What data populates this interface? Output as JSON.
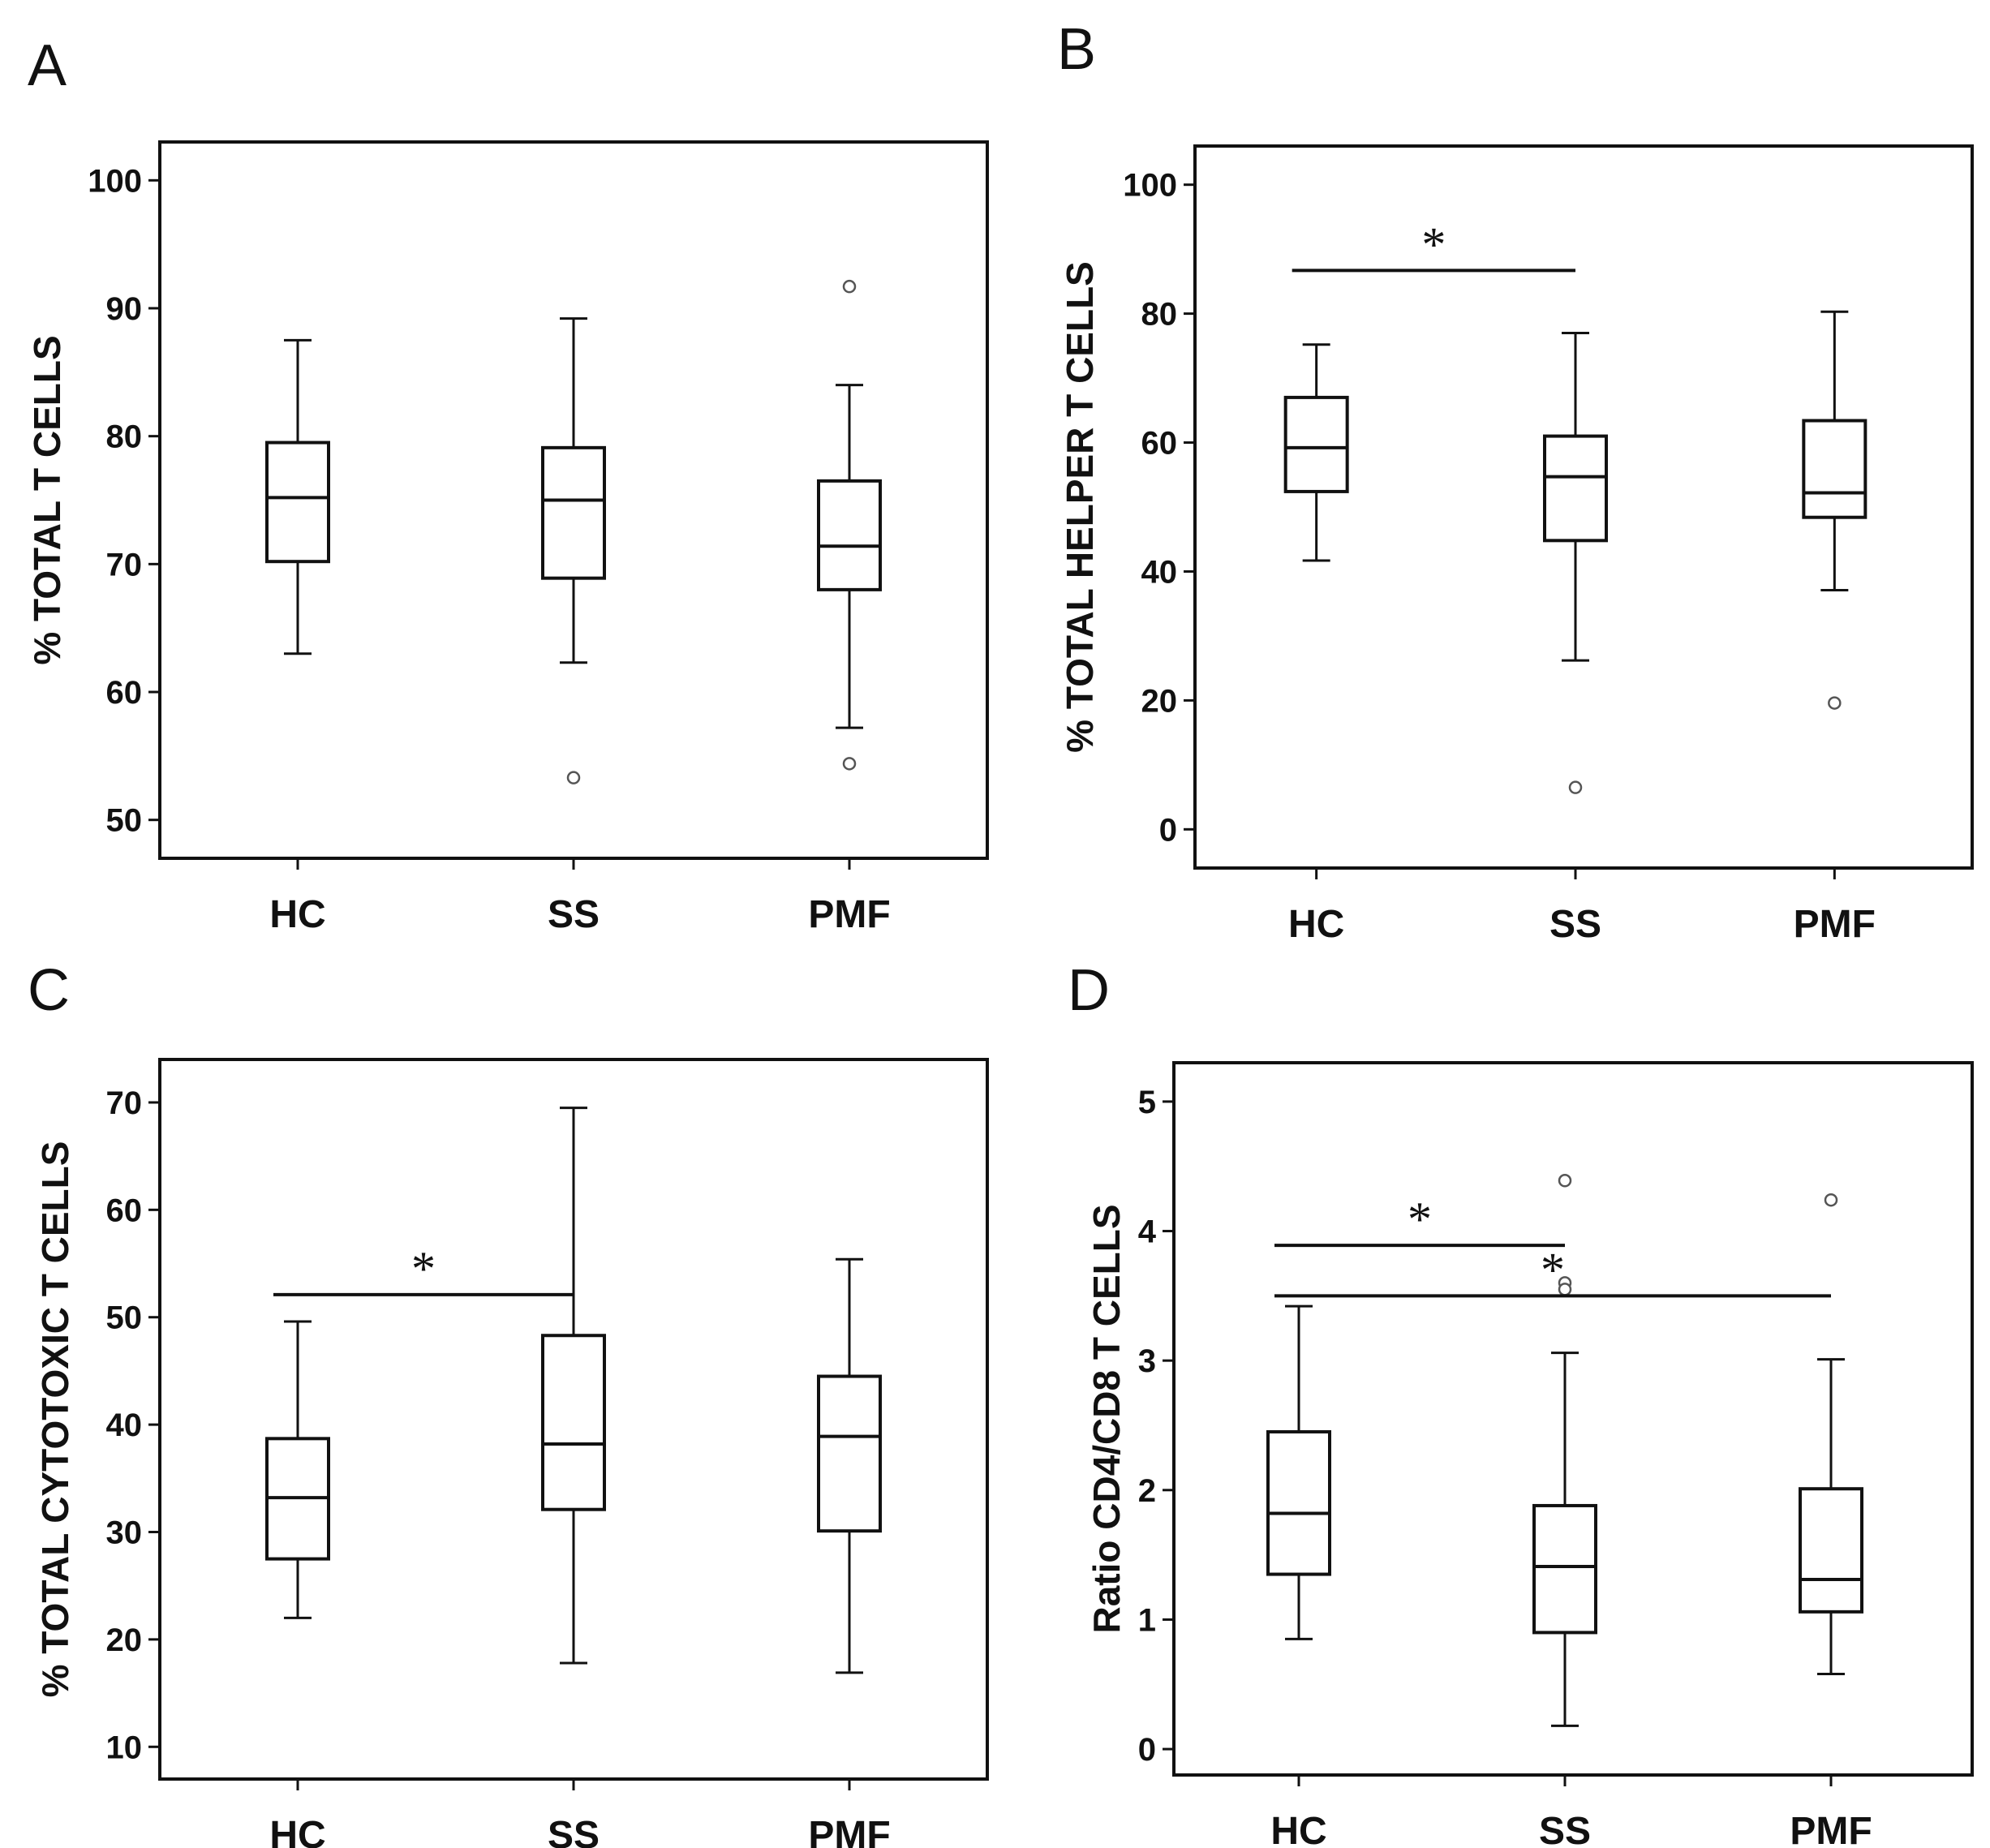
{
  "chart_data": [
    {
      "panel": "A",
      "type": "box",
      "ylabel": "% TOTAL T CELLS",
      "ylim": [
        47,
        103
      ],
      "yticks": [
        50,
        60,
        70,
        80,
        90,
        100
      ],
      "categories": [
        "HC",
        "SS",
        "PMF"
      ],
      "boxes": [
        {
          "category": "HC",
          "whisker_low": 63,
          "q1": 70.2,
          "median": 75.2,
          "q3": 79.5,
          "whisker_high": 87.5,
          "outliers": []
        },
        {
          "category": "SS",
          "whisker_low": 62.3,
          "q1": 68.9,
          "median": 75,
          "q3": 79.1,
          "whisker_high": 89.2,
          "outliers": [
            53.3
          ]
        },
        {
          "category": "PMF",
          "whisker_low": 57.2,
          "q1": 68,
          "median": 71.4,
          "q3": 76.5,
          "whisker_high": 84,
          "outliers": [
            91.7,
            54.4
          ]
        }
      ],
      "significance": []
    },
    {
      "panel": "B",
      "type": "box",
      "ylabel": "%  TOTAL HELPER T CELLS",
      "ylim": [
        -6,
        106
      ],
      "yticks": [
        0,
        20,
        40,
        60,
        80,
        100
      ],
      "categories": [
        "HC",
        "SS",
        "PMF"
      ],
      "boxes": [
        {
          "category": "HC",
          "whisker_low": 41.7,
          "q1": 52.4,
          "median": 59.2,
          "q3": 67,
          "whisker_high": 75.2,
          "outliers": []
        },
        {
          "category": "SS",
          "whisker_low": 26.2,
          "q1": 44.8,
          "median": 54.7,
          "q3": 61,
          "whisker_high": 77,
          "outliers": [
            6.5
          ]
        },
        {
          "category": "PMF",
          "whisker_low": 37.1,
          "q1": 48.4,
          "median": 52.2,
          "q3": 63.4,
          "whisker_high": 80.3,
          "outliers": [
            19.6
          ]
        }
      ],
      "significance": [
        {
          "from": "HC",
          "to": "SS",
          "label": "*",
          "y": 86.7
        }
      ]
    },
    {
      "panel": "C",
      "type": "box",
      "ylabel": "%  TOTAL CYTOTOXIC T CELLS",
      "ylim": [
        7,
        74
      ],
      "yticks": [
        10,
        20,
        30,
        40,
        50,
        60,
        70
      ],
      "categories": [
        "HC",
        "SS",
        "PMF"
      ],
      "boxes": [
        {
          "category": "HC",
          "whisker_low": 22,
          "q1": 27.5,
          "median": 33.2,
          "q3": 38.7,
          "whisker_high": 49.6,
          "outliers": []
        },
        {
          "category": "SS",
          "whisker_low": 17.8,
          "q1": 32.1,
          "median": 38.2,
          "q3": 48.3,
          "whisker_high": 69.5,
          "outliers": []
        },
        {
          "category": "PMF",
          "whisker_low": 16.9,
          "q1": 30.1,
          "median": 38.9,
          "q3": 44.5,
          "whisker_high": 55.4,
          "outliers": []
        }
      ],
      "significance": [
        {
          "from": "HC",
          "to": "SS",
          "label": "*",
          "y": 52.1
        }
      ]
    },
    {
      "panel": "D",
      "type": "box",
      "ylabel": "Ratio CD4/CD8 T CELLS",
      "ylim": [
        -0.2,
        5.3
      ],
      "yticks": [
        0,
        1,
        2,
        3,
        4,
        5
      ],
      "categories": [
        "HC",
        "SS",
        "PMF"
      ],
      "boxes": [
        {
          "category": "HC",
          "whisker_low": 0.85,
          "q1": 1.35,
          "median": 1.82,
          "q3": 2.45,
          "whisker_high": 3.42,
          "outliers": []
        },
        {
          "category": "SS",
          "whisker_low": 0.18,
          "q1": 0.9,
          "median": 1.41,
          "q3": 1.88,
          "whisker_high": 3.06,
          "outliers": [
            4.39,
            3.6,
            3.55
          ]
        },
        {
          "category": "PMF",
          "whisker_low": 0.58,
          "q1": 1.06,
          "median": 1.31,
          "q3": 2.01,
          "whisker_high": 3.01,
          "outliers": [
            4.24
          ]
        }
      ],
      "significance": [
        {
          "from": "HC",
          "to": "SS",
          "label": "*",
          "y": 3.89
        },
        {
          "from": "HC",
          "to": "PMF",
          "label": "*",
          "y": 3.5
        }
      ]
    }
  ]
}
